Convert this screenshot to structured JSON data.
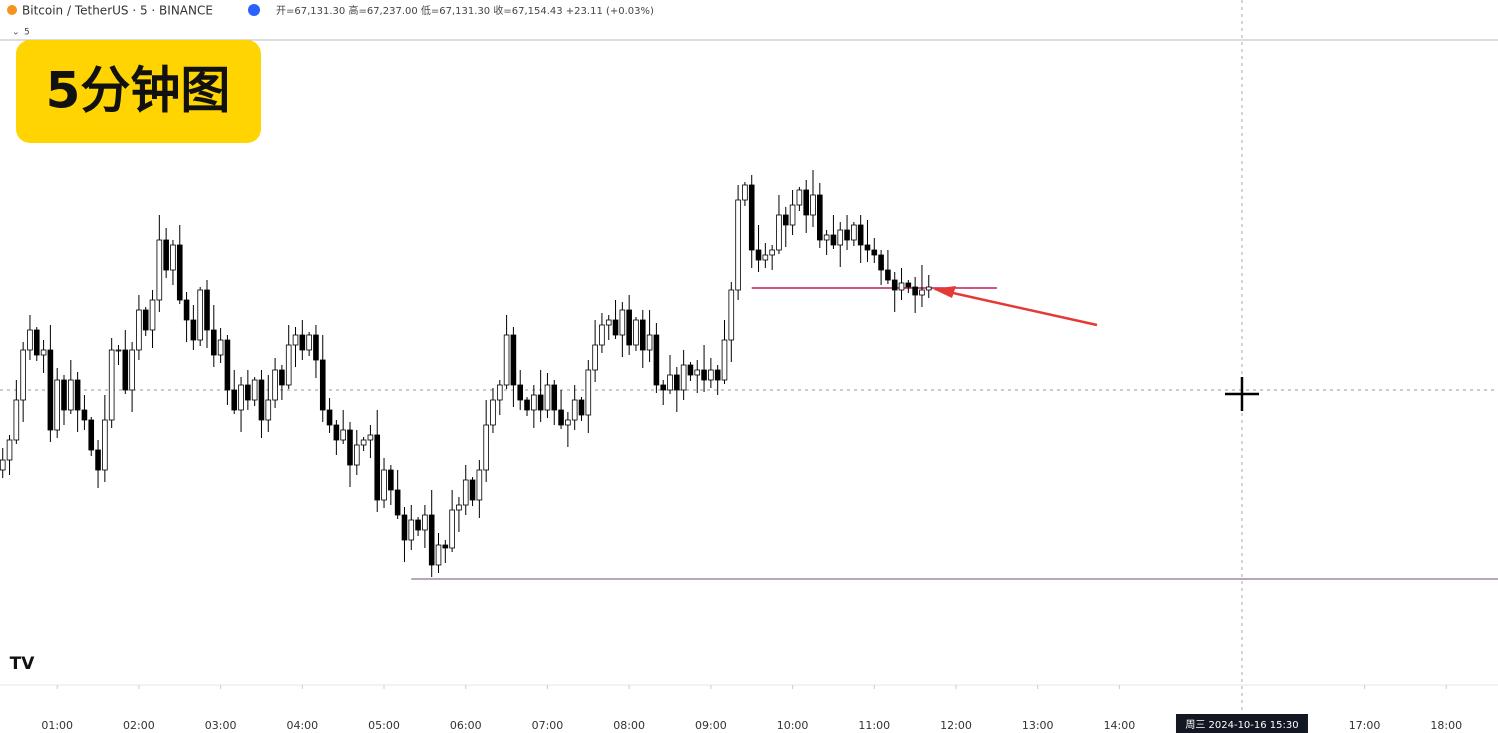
{
  "header": {
    "symbol": "Bitcoin / TetherUS · 5 · BINANCE",
    "ohlc": "开=67,131.30 高=67,237.00 低=67,131.30 收=67,154.43 +23.11 (+0.03%)",
    "interval": "5",
    "badge": "5分钟图",
    "logo": "TV"
  },
  "chart_data": {
    "type": "candlestick",
    "up_color": "#ffffff",
    "down_color": "#000000",
    "x": [
      20,
      25,
      30,
      35,
      40,
      45,
      50,
      55,
      60,
      65,
      70,
      75,
      80,
      85,
      90,
      95,
      100,
      105,
      110,
      115,
      120,
      125,
      130,
      135,
      140,
      145,
      150,
      155,
      160,
      165,
      170,
      175,
      180,
      185,
      190,
      195,
      200,
      205,
      210,
      215,
      220,
      225,
      230,
      235,
      240,
      245,
      250,
      255,
      260,
      265,
      270,
      275,
      280,
      285,
      290,
      295,
      300,
      305,
      310,
      315,
      320,
      325,
      330,
      335,
      340,
      345,
      350,
      355,
      360,
      365,
      370,
      375,
      380,
      385,
      390,
      395,
      400,
      405,
      410,
      415,
      420,
      425,
      430,
      435,
      440,
      445,
      450,
      455,
      460,
      465,
      470,
      475,
      480,
      485,
      490,
      495,
      500,
      505,
      510,
      515,
      520,
      525,
      530,
      535,
      540,
      545,
      550,
      555,
      560,
      565,
      570,
      575,
      580,
      585,
      590,
      595,
      600,
      605,
      610,
      615,
      620,
      625,
      630,
      635,
      640,
      645,
      650,
      655,
      660,
      665,
      670,
      675,
      680,
      685,
      690,
      695,
      700
    ],
    "open": [
      66973,
      66983,
      67003,
      67043,
      67093,
      67113,
      67088,
      67093,
      67013,
      67063,
      67033,
      67063,
      67033,
      67023,
      66993,
      66973,
      67023,
      67093,
      67093,
      67053,
      67093,
      67133,
      67113,
      67143,
      67203,
      67173,
      67198,
      67143,
      67123,
      67103,
      67153,
      67113,
      67088,
      67103,
      67053,
      67033,
      67058,
      67043,
      67063,
      67023,
      67043,
      67073,
      67058,
      67098,
      67108,
      67093,
      67108,
      67083,
      67033,
      67018,
      67003,
      67013,
      66978,
      66998,
      67003,
      67008,
      66943,
      66973,
      66953,
      66928,
      66903,
      66923,
      66913,
      66928,
      66878,
      66898,
      66895,
      66933,
      66938,
      66963,
      66943,
      66973,
      67018,
      67043,
      67058,
      67108,
      67058,
      67043,
      67033,
      67048,
      67033,
      67058,
      67033,
      67018,
      67023,
      67043,
      67028,
      67073,
      67098,
      67118,
      67123,
      67108,
      67133,
      67098,
      67123,
      67093,
      67108,
      67058,
      67053,
      67068,
      67053,
      67078,
      67068,
      67073,
      67063,
      67073,
      67063,
      67103,
      67153,
      67243,
      67258,
      67193,
      67183,
      67188,
      67193,
      67228,
      67218,
      67238,
      67253,
      67228,
      67248,
      67203,
      67208,
      67198,
      67213,
      67203,
      67218,
      67198,
      67193,
      67188,
      67173,
      67163,
      67153,
      67160,
      67156,
      67148,
      67153
    ],
    "high": [
      66995,
      67008,
      67063,
      67101,
      67128,
      67116,
      67103,
      67118,
      67075,
      67068,
      67083,
      67071,
      67048,
      67026,
      67003,
      67048,
      67105,
      67098,
      67113,
      67101,
      67148,
      67136,
      67153,
      67228,
      67215,
      67203,
      67218,
      67151,
      67138,
      67156,
      67163,
      67138,
      67115,
      67108,
      67073,
      67066,
      67073,
      67066,
      67073,
      67068,
      67085,
      67078,
      67118,
      67116,
      67123,
      67111,
      67118,
      67108,
      67045,
      67023,
      67033,
      67021,
      67013,
      67006,
      67018,
      67033,
      66985,
      66978,
      66973,
      66936,
      66938,
      66926,
      66938,
      66953,
      66910,
      66903,
      66953,
      66946,
      66978,
      66966,
      66983,
      67043,
      67055,
      67063,
      67128,
      67116,
      67073,
      67046,
      67058,
      67073,
      67070,
      67063,
      67053,
      67031,
      67058,
      67046,
      67083,
      67123,
      67130,
      67128,
      67143,
      67141,
      67148,
      67126,
      67133,
      67133,
      67120,
      67063,
      67088,
      67076,
      67093,
      67081,
      67083,
      67098,
      67085,
      67078,
      67123,
      67161,
      67258,
      67261,
      67268,
      67218,
      67200,
      67198,
      67248,
      67236,
      67253,
      67256,
      67263,
      67273,
      67260,
      67213,
      67228,
      67221,
      67228,
      67221,
      67228,
      67223,
      67205,
      67193,
      67193,
      67171,
      67175,
      67163,
      67166,
      67178,
      67168
    ],
    "low": [
      66965,
      66968,
      66999,
      67021,
      67083,
      67082,
      67070,
      67001,
      67005,
      67018,
      67029,
      67011,
      67013,
      66987,
      66955,
      66961,
      67015,
      67078,
      67049,
      67031,
      67083,
      67107,
      67095,
      67131,
      67165,
      67158,
      67139,
      67101,
      67093,
      67097,
      67095,
      67076,
      67080,
      67038,
      67029,
      67011,
      67033,
      67037,
      67005,
      67011,
      67035,
      67043,
      67054,
      67076,
      67083,
      67087,
      67065,
      67021,
      67010,
      66988,
      66999,
      66956,
      66968,
      66992,
      66985,
      66931,
      66935,
      66938,
      66924,
      66881,
      66893,
      66907,
      66895,
      66866,
      66870,
      66880,
      66891,
      66911,
      66928,
      66937,
      66925,
      66961,
      67010,
      67028,
      67054,
      67036,
      67033,
      67027,
      67015,
      67021,
      67025,
      67018,
      67014,
      66996,
      67013,
      67022,
      67010,
      67061,
      67090,
      67103,
      67104,
      67086,
      67088,
      67092,
      67075,
      67081,
      67050,
      67038,
      67049,
      67031,
      67043,
      67062,
      67050,
      67051,
      67055,
      67048,
      67059,
      67081,
      67143,
      67237,
      67175,
      67171,
      67175,
      67173,
      67189,
      67196,
      67208,
      67232,
      67210,
      67216,
      67195,
      67188,
      67194,
      67176,
      67193,
      67197,
      67180,
      67181,
      67180,
      67158,
      67159,
      67131,
      67143,
      67150,
      67130,
      67136,
      67145
    ],
    "close": [
      66983,
      67003,
      67043,
      67093,
      67113,
      67088,
      67093,
      67013,
      67063,
      67033,
      67063,
      67033,
      67023,
      66993,
      66973,
      67023,
      67093,
      67093,
      67053,
      67093,
      67133,
      67113,
      67143,
      67203,
      67173,
      67198,
      67143,
      67123,
      67103,
      67153,
      67113,
      67088,
      67103,
      67053,
      67033,
      67058,
      67043,
      67063,
      67023,
      67043,
      67073,
      67058,
      67098,
      67108,
      67093,
      67108,
      67083,
      67033,
      67018,
      67003,
      67013,
      66978,
      66998,
      67003,
      67008,
      66943,
      66973,
      66953,
      66928,
      66903,
      66923,
      66913,
      66928,
      66878,
      66898,
      66895,
      66933,
      66938,
      66963,
      66943,
      66973,
      67018,
      67043,
      67058,
      67108,
      67058,
      67043,
      67033,
      67048,
      67033,
      67058,
      67033,
      67018,
      67023,
      67043,
      67028,
      67073,
      67098,
      67118,
      67123,
      67108,
      67133,
      67098,
      67123,
      67093,
      67108,
      67058,
      67053,
      67068,
      67053,
      67078,
      67068,
      67073,
      67063,
      67073,
      67063,
      67103,
      67153,
      67243,
      67258,
      67193,
      67183,
      67188,
      67193,
      67228,
      67218,
      67238,
      67253,
      67228,
      67248,
      67203,
      67208,
      67198,
      67213,
      67203,
      67218,
      67198,
      67193,
      67188,
      67173,
      67163,
      67153,
      67160,
      67156,
      67148,
      67153,
      67156
    ],
    "xlim": [
      18,
      1118
    ],
    "ylim": [
      66758,
      67403
    ],
    "xticks": [
      {
        "value": 60,
        "label": "01:00"
      },
      {
        "value": 120,
        "label": "02:00"
      },
      {
        "value": 180,
        "label": "03:00"
      },
      {
        "value": 240,
        "label": "04:00"
      },
      {
        "value": 300,
        "label": "05:00"
      },
      {
        "value": 360,
        "label": "06:00"
      },
      {
        "value": 420,
        "label": "07:00"
      },
      {
        "value": 480,
        "label": "08:00"
      },
      {
        "value": 540,
        "label": "09:00"
      },
      {
        "value": 600,
        "label": "10:00"
      },
      {
        "value": 660,
        "label": "11:00"
      },
      {
        "value": 720,
        "label": "12:00"
      },
      {
        "value": 780,
        "label": "13:00"
      },
      {
        "value": 840,
        "label": "14:00"
      },
      {
        "value": 1020,
        "label": "17:00"
      },
      {
        "value": 1080,
        "label": "18:00"
      }
    ],
    "levels": [
      {
        "value": 67155,
        "from": 570,
        "to": 750,
        "color": "#c2185b"
      },
      {
        "value": 66864,
        "from": 320,
        "to": 1118,
        "color": "#a08aa6"
      }
    ],
    "crosshair": {
      "x": 930,
      "y": 67053,
      "label": "周三 2024-10-16  15:30"
    }
  }
}
